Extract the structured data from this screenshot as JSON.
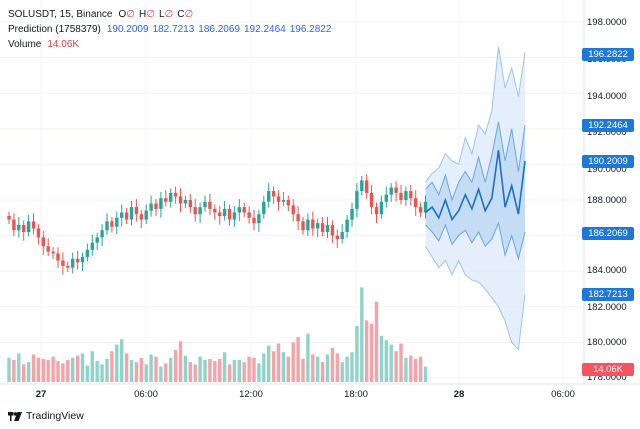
{
  "legend": {
    "symbol": "SOLUSDT, 15, Binance",
    "ohlc": [
      {
        "key": "O",
        "value": "∅"
      },
      {
        "key": "H",
        "value": "∅"
      },
      {
        "key": "L",
        "value": "∅"
      },
      {
        "key": "C",
        "value": "∅"
      }
    ],
    "prediction_name": "Prediction (1758379)",
    "prediction_values": [
      "190.2009",
      "182.7213",
      "186.2069",
      "192.2464",
      "196.2822"
    ],
    "volume_name": "Volume",
    "volume_value": "14.06K"
  },
  "price_axis": {
    "ticks": [
      "198.0000",
      "196.0000",
      "194.0000",
      "192.0000",
      "190.0000",
      "188.0000",
      "186.0000",
      "184.0000",
      "182.0000",
      "180.0000",
      "178.0000"
    ],
    "tags": [
      {
        "text": "196.2822",
        "color": "#1e78d7"
      },
      {
        "text": "192.2464",
        "color": "#1e78d7"
      },
      {
        "text": "190.2009",
        "color": "#1e78d7"
      },
      {
        "text": "186.2069",
        "color": "#1e78d7"
      },
      {
        "text": "182.7213",
        "color": "#1e78d7"
      },
      {
        "text": "14.06K",
        "color": "#f7525f"
      }
    ]
  },
  "time_axis": {
    "ticks": [
      {
        "text": "27",
        "bold": true
      },
      {
        "text": "06:00",
        "bold": false
      },
      {
        "text": "12:00",
        "bold": false
      },
      {
        "text": "18:00",
        "bold": false
      },
      {
        "text": "28",
        "bold": true
      },
      {
        "text": "06:00",
        "bold": false
      }
    ]
  },
  "brand": {
    "text": "TradingView"
  },
  "colors": {
    "up": "#26a69a",
    "down": "#ef5350",
    "vol_up": "#8fd3c9",
    "vol_down": "#f4a3a8",
    "pred_line": "#1e6fc8",
    "band_inner": "#a9cdf0",
    "band_outer": "#dbeafa"
  },
  "chart_data": {
    "type": "candlestick",
    "y_range": [
      178,
      198
    ],
    "candles_close": [
      186.9,
      186.3,
      186.6,
      186.2,
      186.8,
      186.4,
      185.9,
      185.4,
      185.1,
      185.0,
      184.6,
      184.3,
      184.2,
      184.7,
      184.5,
      184.8,
      185.2,
      185.6,
      185.9,
      186.3,
      186.8,
      186.5,
      187.0,
      187.3,
      186.9,
      187.6,
      187.2,
      186.9,
      187.4,
      187.8,
      187.5,
      188.1,
      187.9,
      188.4,
      188.2,
      187.8,
      188.0,
      187.6,
      187.2,
      187.6,
      187.9,
      187.5,
      187.3,
      187.1,
      187.5,
      186.9,
      187.3,
      187.6,
      187.3,
      187.0,
      186.7,
      187.2,
      187.9,
      188.5,
      188.2,
      187.9,
      188.0,
      187.7,
      187.2,
      186.8,
      186.3,
      186.9,
      186.4,
      186.7,
      186.2,
      186.6,
      186.0,
      185.8,
      186.2,
      186.9,
      187.5,
      188.5,
      189.1,
      188.4,
      187.6,
      187.2,
      187.9,
      188.3,
      188.7,
      188.4,
      188.0,
      188.5,
      188.1,
      187.6,
      187.3,
      187.9
    ],
    "prediction": {
      "mid": [
        187.3,
        187.6,
        187.0,
        188.0,
        186.9,
        187.4,
        188.3,
        187.5,
        188.6,
        187.4,
        188.1,
        190.8,
        187.6,
        188.8,
        187.2,
        190.2
      ],
      "inner_upper": [
        188.6,
        189.0,
        188.3,
        189.4,
        188.0,
        189.0,
        189.6,
        189.0,
        190.4,
        189.0,
        190.5,
        192.4,
        190.2,
        192.0,
        189.6,
        192.2
      ],
      "inner_lower": [
        186.6,
        186.2,
        185.7,
        186.6,
        185.5,
        186.0,
        186.3,
        185.6,
        186.2,
        185.4,
        185.8,
        186.7,
        184.9,
        186.0,
        184.7,
        186.2
      ],
      "outer_upper": [
        189.0,
        189.5,
        189.8,
        190.6,
        190.2,
        190.0,
        191.5,
        190.6,
        192.2,
        191.7,
        193.0,
        196.6,
        194.3,
        195.4,
        193.8,
        196.3
      ],
      "outer_lower": [
        185.4,
        184.8,
        184.2,
        184.6,
        183.8,
        184.6,
        183.8,
        183.5,
        183.4,
        183.0,
        182.5,
        182.0,
        181.2,
        180.0,
        179.6,
        182.7
      ]
    },
    "volume": [
      2.2,
      2.0,
      2.6,
      1.6,
      1.8,
      2.5,
      2.2,
      2.1,
      2.0,
      2.3,
      1.9,
      1.7,
      2.0,
      2.2,
      2.4,
      2.6,
      1.5,
      2.8,
      1.9,
      1.6,
      2.1,
      2.8,
      3.4,
      3.9,
      2.6,
      2.0,
      1.8,
      2.2,
      1.6,
      2.5,
      2.3,
      1.4,
      1.7,
      2.2,
      2.9,
      3.7,
      2.4,
      1.8,
      1.6,
      2.3,
      2.0,
      2.1,
      1.9,
      2.1,
      2.7,
      1.6,
      2.0,
      2.0,
      1.8,
      2.3,
      2.2,
      1.7,
      2.6,
      3.3,
      2.8,
      3.5,
      2.7,
      2.3,
      3.6,
      4.1,
      2.1,
      4.4,
      2.5,
      2.3,
      1.8,
      2.5,
      3.1,
      2.6,
      1.8,
      2.3,
      2.7,
      5.1,
      8.6,
      5.6,
      5.3,
      7.3,
      4.2,
      3.8,
      3.4,
      2.8,
      3.5,
      2.2,
      2.4,
      2.1,
      2.3,
      1.4
    ]
  }
}
